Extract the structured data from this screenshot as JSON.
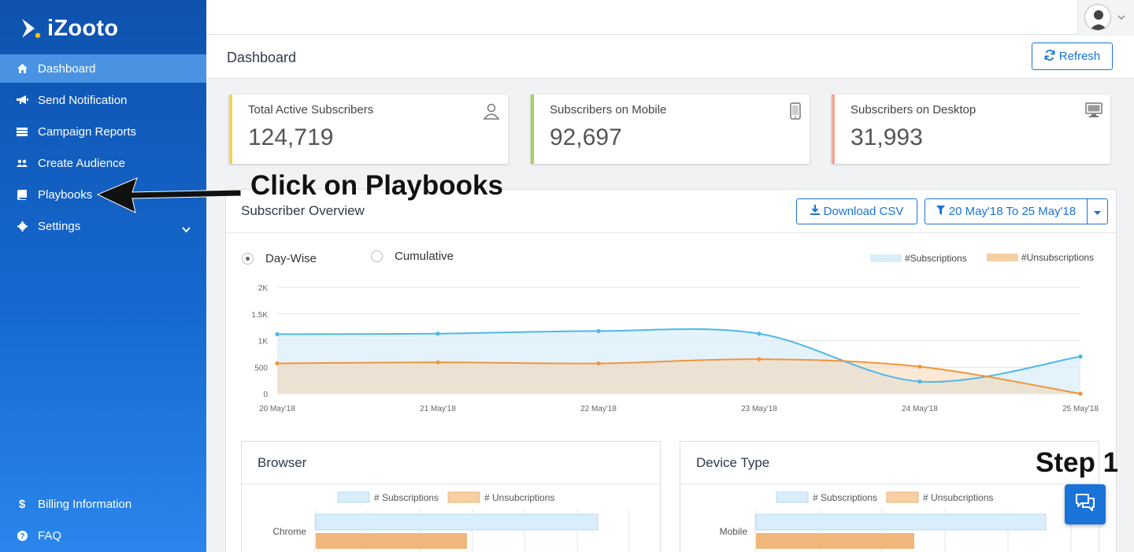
{
  "app": {
    "name": "iZooto"
  },
  "sidebar": {
    "items": [
      {
        "label": "Dashboard",
        "icon": "home-icon"
      },
      {
        "label": "Send Notification",
        "icon": "megaphone-icon"
      },
      {
        "label": "Campaign Reports",
        "icon": "list-icon"
      },
      {
        "label": "Create Audience",
        "icon": "users-icon"
      },
      {
        "label": "Playbooks",
        "icon": "book-icon"
      },
      {
        "label": "Settings",
        "icon": "gear-icon"
      }
    ],
    "bottom_items": [
      {
        "label": "Billing Information",
        "icon": "dollar-icon"
      },
      {
        "label": "FAQ",
        "icon": "question-icon"
      }
    ]
  },
  "header": {
    "title": "Dashboard",
    "refresh_label": "Refresh"
  },
  "stats": [
    {
      "label": "Total Active Subscribers",
      "value": "124,719",
      "color": "#f2d34e"
    },
    {
      "label": "Subscribers on Mobile",
      "value": "92,697",
      "color": "#a6d15a"
    },
    {
      "label": "Subscribers on Desktop",
      "value": "31,993",
      "color": "#f2a89a"
    }
  ],
  "overview": {
    "title": "Subscriber Overview",
    "download_label": "Download CSV",
    "date_range_label": "20 May'18 To 25 May'18",
    "radio_daywise": "Day-Wise",
    "radio_cumulative": "Cumulative"
  },
  "chart_data": {
    "type": "area",
    "categories": [
      "20 May'18",
      "21 May'18",
      "22 May'18",
      "23 May'18",
      "24 May'18",
      "25 May'18"
    ],
    "yticks": [
      "0",
      "500",
      "1K",
      "1.5K",
      "2K"
    ],
    "ylim": [
      0,
      2000
    ],
    "series": [
      {
        "name": "#Subscriptions",
        "values": [
          1120,
          1130,
          1180,
          1130,
          230,
          700
        ],
        "color": "#4fb8e8",
        "fill": "#d9eefa"
      },
      {
        "name": "#Unsubscriptions",
        "values": [
          570,
          590,
          570,
          650,
          510,
          0
        ],
        "color": "#f0963c",
        "fill": "#f6cfa2"
      }
    ],
    "grid": true,
    "legend": "top-right"
  },
  "browser_panel": {
    "title": "Browser",
    "legend": [
      "# Subscriptions",
      "# Unsubcriptions"
    ],
    "rows": [
      {
        "label": "Chrome"
      }
    ]
  },
  "device_panel": {
    "title": "Device Type",
    "legend": [
      "# Subscriptions",
      "# Unsubcriptions"
    ],
    "rows": [
      {
        "label": "Mobile"
      }
    ]
  },
  "annotations": {
    "playbooks": "Click on Playbooks",
    "step": "Step 1"
  }
}
